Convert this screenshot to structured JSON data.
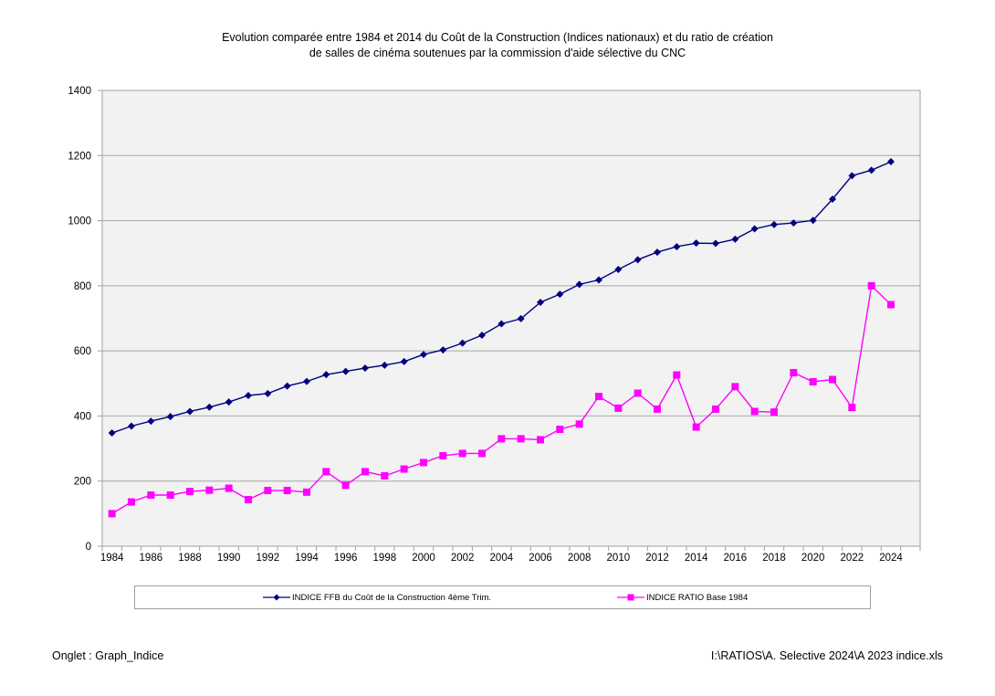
{
  "page": {
    "footer_left": "Onglet : Graph_Indice",
    "footer_right": "I:\\RATIOS\\A. Selective 2024\\A 2023 indice.xls"
  },
  "chart_data": {
    "type": "line",
    "title_line1": "Evolution comparée entre 1984 et 2014 du Coût de la Construction (Indices nationaux) et du ratio de création",
    "title_line2": "de salles de cinéma soutenues par la commission d'aide sélective du CNC",
    "xlabel": "",
    "ylabel": "",
    "ylim": [
      0,
      1400
    ],
    "yticks": [
      0,
      200,
      400,
      600,
      800,
      1000,
      1200,
      1400
    ],
    "grid": true,
    "legend_position": "bottom",
    "x": [
      1984,
      1985,
      1986,
      1987,
      1988,
      1989,
      1990,
      1991,
      1992,
      1993,
      1994,
      1995,
      1996,
      1997,
      1998,
      1999,
      2000,
      2001,
      2002,
      2003,
      2004,
      2005,
      2006,
      2007,
      2008,
      2009,
      2010,
      2011,
      2012,
      2013,
      2014,
      2015,
      2016,
      2017,
      2018,
      2019,
      2020,
      2021,
      2022,
      2023,
      2024
    ],
    "xtick_labels": [
      "1984",
      "1986",
      "1988",
      "1990",
      "1992",
      "1994",
      "1996",
      "1998",
      "2000",
      "2002",
      "2004",
      "2006",
      "2008",
      "2010",
      "2012",
      "2014",
      "2016",
      "2018",
      "2020",
      "2022",
      "2024"
    ],
    "series": [
      {
        "name": "INDICE FFB du Coût de la Construction 4ème Trim.",
        "color": "#000080",
        "marker": "diamond",
        "values": [
          348,
          369,
          384,
          398,
          414,
          427,
          443,
          463,
          469,
          492,
          506,
          527,
          537,
          547,
          556,
          567,
          589,
          603,
          624,
          648,
          683,
          699,
          749,
          774,
          804,
          818,
          850,
          880,
          903,
          920,
          931,
          930,
          943,
          975,
          988,
          993,
          1001,
          1066,
          1138,
          1155,
          1181
        ]
      },
      {
        "name": "INDICE RATIO Base 1984",
        "color": "#ff00ff",
        "marker": "square",
        "values": [
          100,
          136,
          157,
          157,
          168,
          172,
          178,
          143,
          171,
          171,
          166,
          229,
          187,
          229,
          216,
          237,
          257,
          278,
          285,
          285,
          330,
          330,
          327,
          359,
          375,
          460,
          424,
          470,
          421,
          526,
          366,
          421,
          490,
          414,
          412,
          533,
          505,
          512,
          426,
          800,
          742
        ]
      }
    ]
  }
}
